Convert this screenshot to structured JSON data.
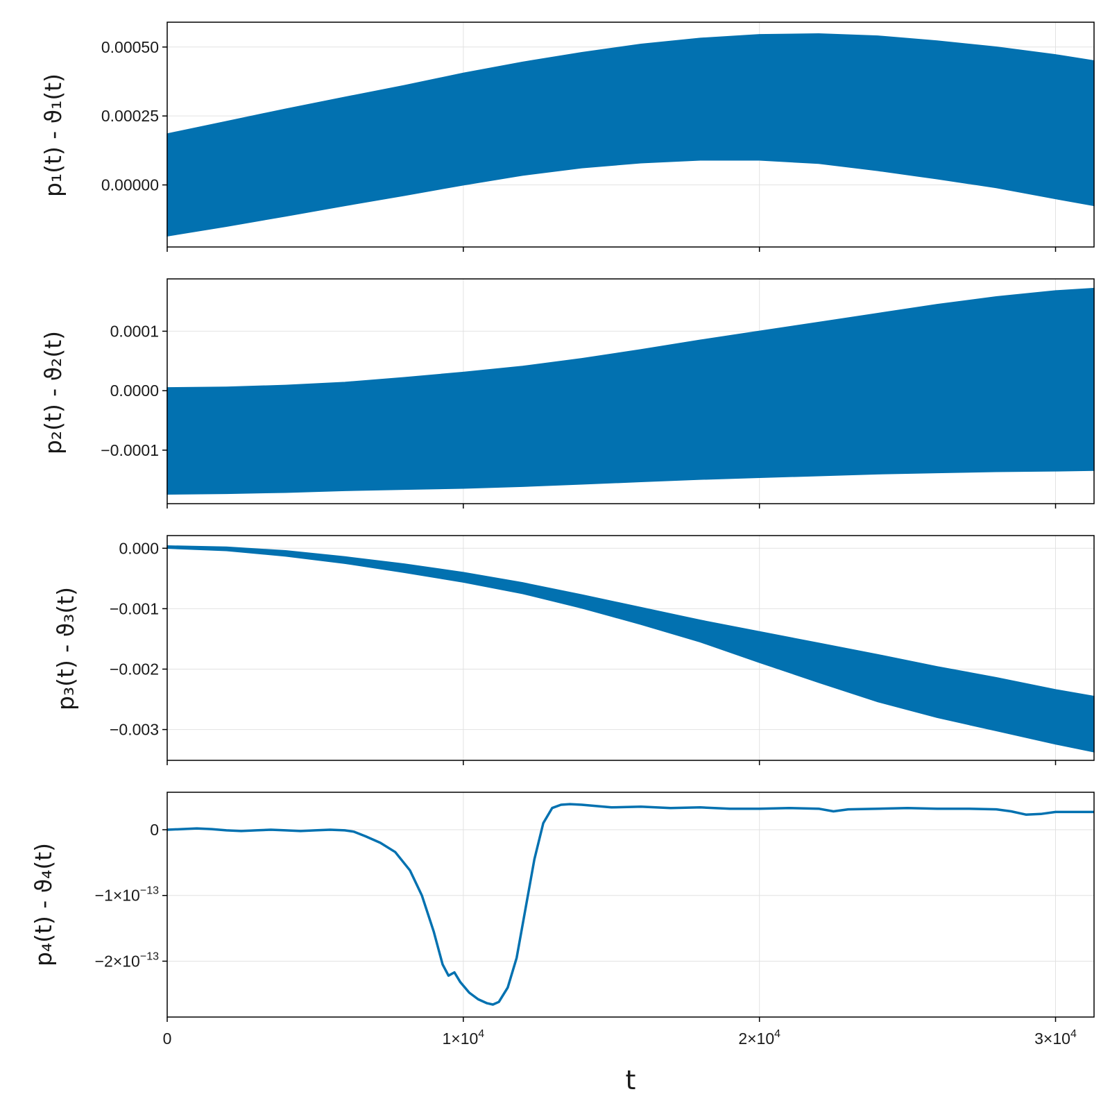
{
  "chart_data": [
    {
      "type": "area",
      "ylabel": "p₁(t) - ϑ₁(t)",
      "xlabel": "",
      "xlim": [
        0,
        31300
      ],
      "ylim": [
        -0.000225,
        0.00059
      ],
      "grid": true,
      "color": "#0271b0",
      "x_ticks": [
        0,
        10000,
        20000,
        30000
      ],
      "y_ticks": [
        {
          "value": 0.0005,
          "label": "0.00050"
        },
        {
          "value": 0.00025,
          "label": "0.00025"
        },
        {
          "value": 0.0,
          "label": "0.00000"
        }
      ],
      "band": {
        "x": [
          0,
          2000,
          4000,
          6000,
          8000,
          10000,
          12000,
          14000,
          16000,
          18000,
          20000,
          22000,
          24000,
          26000,
          28000,
          30000,
          31300
        ],
        "upper": [
          0.000185,
          0.00023,
          0.000275,
          0.000318,
          0.00036,
          0.000405,
          0.000445,
          0.00048,
          0.00051,
          0.000532,
          0.000545,
          0.000548,
          0.00054,
          0.000522,
          0.0005,
          0.000472,
          0.00045
        ],
        "lower": [
          -0.000185,
          -0.00015,
          -0.000113,
          -7.5e-05,
          -3.8e-05,
          0.0,
          3.5e-05,
          6.2e-05,
          8e-05,
          9e-05,
          9e-05,
          7.8e-05,
          5.2e-05,
          2.2e-05,
          -1e-05,
          -5e-05,
          -7.5e-05
        ]
      }
    },
    {
      "type": "area",
      "ylabel": "p₂(t) - ϑ₂(t)",
      "xlabel": "",
      "xlim": [
        0,
        31300
      ],
      "ylim": [
        -0.00019,
        0.000188
      ],
      "grid": true,
      "color": "#0271b0",
      "x_ticks": [
        0,
        10000,
        20000,
        30000
      ],
      "y_ticks": [
        {
          "value": 0.0001,
          "label": "0.0001"
        },
        {
          "value": 0.0,
          "label": "0.0000"
        },
        {
          "value": -0.0001,
          "label": "−0.0001"
        }
      ],
      "band": {
        "x": [
          0,
          2000,
          4000,
          6000,
          8000,
          10000,
          12000,
          14000,
          16000,
          18000,
          20000,
          22000,
          24000,
          26000,
          28000,
          30000,
          31300
        ],
        "upper": [
          5e-06,
          6e-06,
          9e-06,
          1.4e-05,
          2.2e-05,
          3.1e-05,
          4.1e-05,
          5.4e-05,
          6.9e-05,
          8.5e-05,
          0.0001,
          0.000115,
          0.00013,
          0.000145,
          0.000158,
          0.000168,
          0.000172
        ],
        "lower": [
          -0.000174,
          -0.000173,
          -0.000171,
          -0.000168,
          -0.000166,
          -0.000164,
          -0.000161,
          -0.000157,
          -0.000153,
          -0.000149,
          -0.000146,
          -0.000143,
          -0.00014,
          -0.000138,
          -0.000136,
          -0.000135,
          -0.000134
        ]
      }
    },
    {
      "type": "area",
      "ylabel": "p₃(t) - ϑ₃(t)",
      "xlabel": "",
      "xlim": [
        0,
        31300
      ],
      "ylim": [
        -0.00351,
        0.00021
      ],
      "grid": true,
      "color": "#0271b0",
      "x_ticks": [
        0,
        10000,
        20000,
        30000
      ],
      "y_ticks": [
        {
          "value": 0.0,
          "label": "0.000"
        },
        {
          "value": -0.001,
          "label": "−0.001"
        },
        {
          "value": -0.002,
          "label": "−0.002"
        },
        {
          "value": -0.003,
          "label": "−0.003"
        }
      ],
      "band": {
        "x": [
          0,
          2000,
          4000,
          6000,
          8000,
          10000,
          12000,
          14000,
          16000,
          18000,
          20000,
          22000,
          24000,
          26000,
          28000,
          30000,
          31300
        ],
        "upper": [
          4e-05,
          2e-05,
          -4e-05,
          -0.00014,
          -0.00026,
          -0.0004,
          -0.00057,
          -0.00077,
          -0.00098,
          -0.00119,
          -0.00138,
          -0.00157,
          -0.00176,
          -0.00196,
          -0.00214,
          -0.00234,
          -0.00245
        ],
        "lower": [
          0.0,
          -4e-05,
          -0.00013,
          -0.00025,
          -0.0004,
          -0.00056,
          -0.00075,
          -0.00099,
          -0.00126,
          -0.00155,
          -0.00189,
          -0.00222,
          -0.00254,
          -0.0028,
          -0.00302,
          -0.00324,
          -0.00337
        ]
      }
    },
    {
      "type": "line",
      "ylabel": "p₄(t) - ϑ₄(t)",
      "xlabel": "t",
      "xlim": [
        0,
        31300
      ],
      "ylim": [
        -2.85e-13,
        5.7e-14
      ],
      "grid": true,
      "color": "#0271b0",
      "x_ticks": [
        {
          "value": 0,
          "label": "0",
          "exp": ""
        },
        {
          "value": 10000,
          "label": "1×10",
          "exp": "4"
        },
        {
          "value": 20000,
          "label": "2×10",
          "exp": "4"
        },
        {
          "value": 30000,
          "label": "3×10",
          "exp": "4"
        }
      ],
      "y_ticks": [
        {
          "value": 0,
          "label": "0",
          "exp": ""
        },
        {
          "value": -1e-13,
          "label": "−1×10",
          "exp": "−13"
        },
        {
          "value": -2e-13,
          "label": "−2×10",
          "exp": "−13"
        }
      ],
      "series": [
        {
          "x": [
            0,
            500,
            1000,
            1500,
            2000,
            2500,
            3000,
            3500,
            4000,
            4500,
            5000,
            5500,
            6000,
            6300,
            6700,
            7200,
            7700,
            8200,
            8600,
            9000,
            9300,
            9500,
            9700,
            9900,
            10200,
            10500,
            10800,
            11000,
            11200,
            11500,
            11800,
            12100,
            12400,
            12700,
            13000,
            13300,
            13600,
            14000,
            15000,
            16000,
            17000,
            18000,
            19000,
            20000,
            21000,
            22000,
            22500,
            23000,
            24000,
            25000,
            26000,
            27000,
            28000,
            28500,
            29000,
            29500,
            30000,
            31300
          ],
          "y": [
            0,
            1e-15,
            2e-15,
            1e-15,
            -1e-15,
            -2e-15,
            -1e-15,
            0.0,
            -1e-15,
            -2e-15,
            -1e-15,
            0.0,
            -1e-15,
            -3e-15,
            -1e-14,
            -2e-14,
            -3.4e-14,
            -6.2e-14,
            -1e-13,
            -1.55e-13,
            -2.05e-13,
            -2.22e-13,
            -2.17e-13,
            -2.32e-13,
            -2.48e-13,
            -2.58e-13,
            -2.64e-13,
            -2.66e-13,
            -2.62e-13,
            -2.4e-13,
            -1.95e-13,
            -1.2e-13,
            -4.5e-14,
            1e-14,
            3.3e-14,
            3.8e-14,
            3.9e-14,
            3.8e-14,
            3.4e-14,
            3.5e-14,
            3.3e-14,
            3.4e-14,
            3.2e-14,
            3.2e-14,
            3.3e-14,
            3.2e-14,
            2.8e-14,
            3.1e-14,
            3.2e-14,
            3.3e-14,
            3.2e-14,
            3.2e-14,
            3.1e-14,
            2.8e-14,
            2.3e-14,
            2.4e-14,
            2.7e-14,
            2.7e-14
          ]
        }
      ]
    }
  ]
}
